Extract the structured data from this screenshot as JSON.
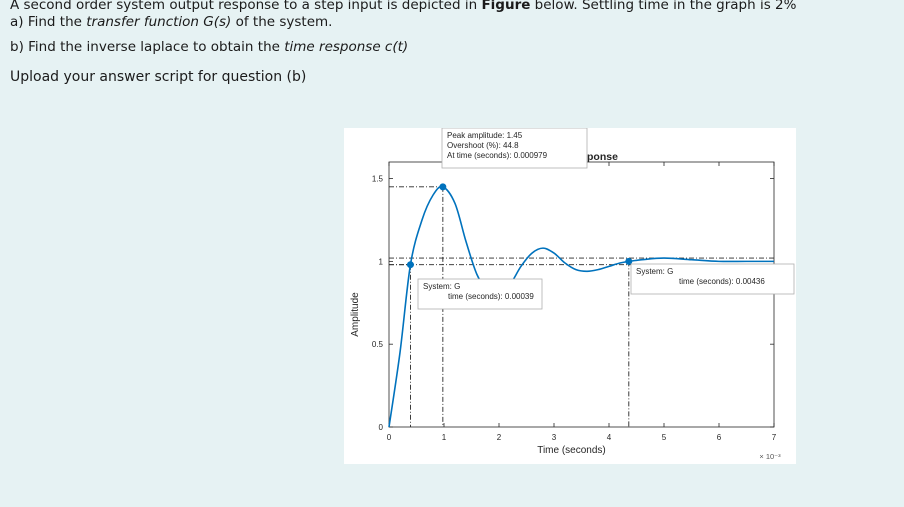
{
  "question": {
    "line1_a": "A second order system output response to a step input is depicted in ",
    "line1_b": "Figure",
    "line1_c": " below. Settling time in the graph is 2%",
    "line2_a": "a) Find the ",
    "line2_b": "transfer function G(s)",
    "line2_c": " of the system.",
    "line3_a": "b) Find the inverse laplace to obtain the ",
    "line3_b": "time response c(t)",
    "upload": "Upload your answer script for question (b)"
  },
  "chart_data": {
    "type": "line",
    "title": "ponse",
    "xlabel": "Time (seconds)",
    "ylabel": "Amplitude",
    "x_exponent_label": "× 10⁻³",
    "xlim": [
      0,
      7
    ],
    "ylim": [
      0,
      1.6
    ],
    "x_unit_multiplier": "1e-3",
    "xticks": [
      "0",
      "1",
      "2",
      "3",
      "4",
      "5",
      "6",
      "7"
    ],
    "yticks": [
      "0",
      "0.5",
      "1",
      "1.5"
    ],
    "line_color": "#0072bd",
    "series": [
      {
        "x": [
          0,
          0.2,
          0.39,
          0.6,
          0.8,
          0.979,
          1.2,
          1.4,
          1.6,
          1.8,
          2.0,
          2.2,
          2.4,
          2.6,
          2.8,
          3.0,
          3.2,
          3.4,
          3.6,
          3.8,
          4.0,
          4.2,
          4.36,
          4.6,
          5.0,
          5.5,
          6.0,
          6.5,
          7.0
        ],
        "y": [
          0,
          0.45,
          0.98,
          1.25,
          1.4,
          1.45,
          1.35,
          1.12,
          0.92,
          0.82,
          0.8,
          0.86,
          0.97,
          1.05,
          1.08,
          1.05,
          0.99,
          0.95,
          0.94,
          0.95,
          0.97,
          0.99,
          1.0,
          1.01,
          1.02,
          1.01,
          1.0,
          1.0,
          1.0
        ]
      }
    ],
    "annotations": [
      {
        "name": "peak",
        "x": 0.979,
        "y": 1.45,
        "lines": [
          "Peak amplitude: 1.45",
          "Overshoot (%): 44.8",
          "At time (seconds): 0.000979"
        ]
      },
      {
        "name": "rise",
        "x": 0.39,
        "y": 0.98,
        "lines": [
          "System: G",
          "time (seconds): 0.00039"
        ]
      },
      {
        "name": "settling",
        "x": 4.36,
        "y": 1.0,
        "lines": [
          "System: G",
          "time (seconds): 0.00436"
        ]
      }
    ],
    "reference_levels": [
      1.45,
      1.02,
      0.98,
      0.98
    ],
    "grid": false
  }
}
